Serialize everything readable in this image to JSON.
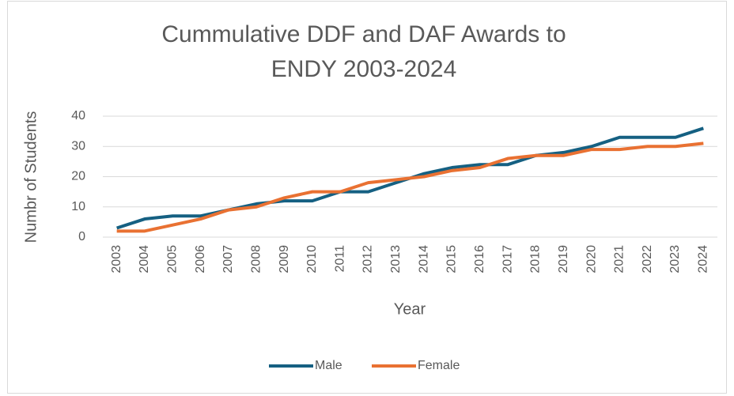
{
  "chart_data": {
    "type": "line",
    "title": "Cummulative DDF and DAF Awards to ENDY 2003-2024",
    "x_label": "Year",
    "y_label": "Numbr of Students",
    "categories": [
      "2003",
      "2004",
      "2005",
      "2006",
      "2007",
      "2008",
      "2009",
      "2010",
      "2011",
      "2012",
      "2013",
      "2014",
      "2015",
      "2016",
      "2017",
      "2018",
      "2019",
      "2020",
      "2021",
      "2022",
      "2023",
      "2024"
    ],
    "series": [
      {
        "name": "Male",
        "color": "#156082",
        "values": [
          3,
          6,
          7,
          7,
          9,
          11,
          12,
          12,
          15,
          15,
          18,
          21,
          23,
          24,
          24,
          27,
          28,
          30,
          33,
          33,
          33,
          36
        ]
      },
      {
        "name": "Female",
        "color": "#e97132",
        "values": [
          2,
          2,
          4,
          6,
          9,
          10,
          13,
          15,
          15,
          18,
          19,
          20,
          22,
          23,
          26,
          27,
          27,
          29,
          29,
          30,
          30,
          31
        ]
      }
    ],
    "ylim": [
      0,
      40
    ],
    "yticks": [
      0,
      10,
      20,
      30,
      40
    ],
    "grid": true,
    "legend": "bottom"
  }
}
